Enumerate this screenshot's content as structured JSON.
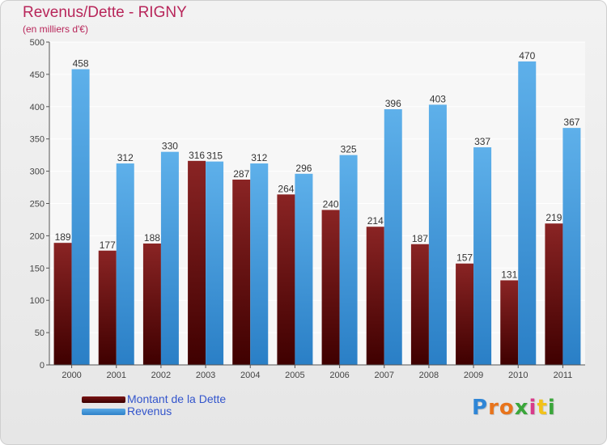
{
  "header": {
    "title": "Revenus/Dette - RIGNY",
    "subtitle": "(en milliers d'€)"
  },
  "legend": {
    "dette_label": "Montant de la Dette",
    "revenus_label": "Revenus"
  },
  "logo": {
    "text": "Proxiti",
    "letter_colors": [
      "#2f86d6",
      "#e8741c",
      "#e8741c",
      "#3aa63a",
      "#d83a8a",
      "#f2c21a",
      "#3aa63a"
    ]
  },
  "colors": {
    "dette_top": "#8a2424",
    "dette_bottom": "#3f0000",
    "revenus_top": "#5eb0ea",
    "revenus_bottom": "#2a7fc6",
    "title": "#b8265a"
  },
  "chart_data": {
    "type": "bar",
    "title": "Revenus/Dette - RIGNY",
    "subtitle": "(en milliers d'€)",
    "categories": [
      "2000",
      "2001",
      "2002",
      "2003",
      "2004",
      "2005",
      "2006",
      "2007",
      "2008",
      "2009",
      "2010",
      "2011"
    ],
    "series": [
      {
        "name": "Montant de la Dette",
        "values": [
          189,
          177,
          188,
          316,
          287,
          264,
          240,
          214,
          187,
          157,
          131,
          219
        ]
      },
      {
        "name": "Revenus",
        "values": [
          458,
          312,
          330,
          315,
          312,
          296,
          325,
          396,
          403,
          337,
          470,
          367
        ]
      }
    ],
    "yticks": [
      0,
      50,
      100,
      150,
      200,
      250,
      300,
      350,
      400,
      450,
      500
    ],
    "ylim": [
      0,
      500
    ],
    "grid": true,
    "legend_position": "bottom-left"
  }
}
